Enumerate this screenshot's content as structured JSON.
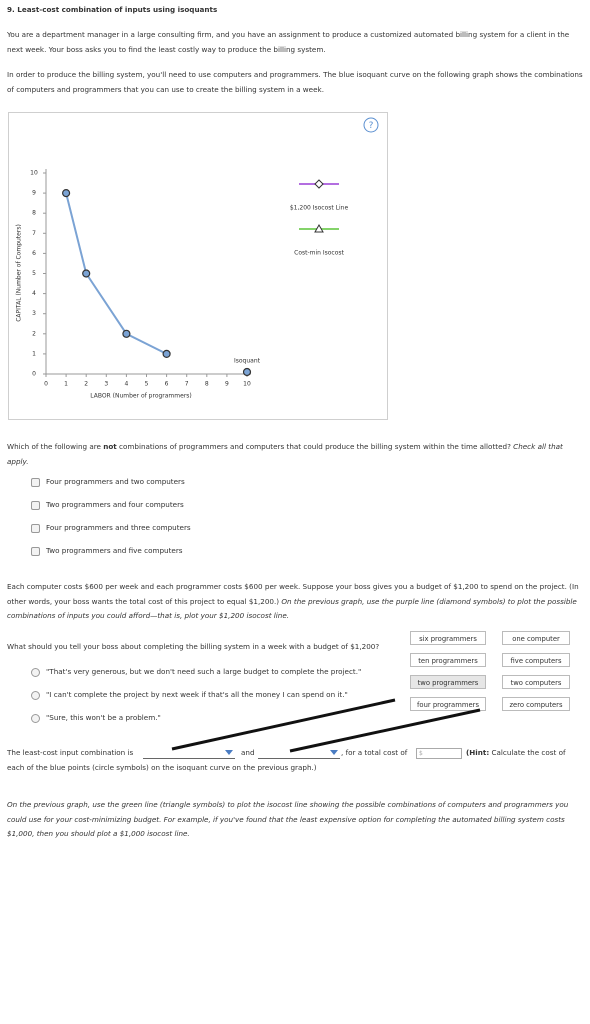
{
  "title": "9. Least-cost combination of inputs using isoquants",
  "intro": [
    "You are a department manager in a large consulting firm, and you have an assignment to produce a customized automated billing system for a client in the next week. Your boss asks you to find the least costly way to produce the billing system.",
    "In order to produce the billing system, you'll need to use computers and programmers. The blue isoquant curve on the following graph shows the combinations of computers and programmers that you can use to create the billing system in a week."
  ],
  "graph": {
    "type": "line",
    "help": "?",
    "x_label": "LABOR (Number of programmers)",
    "y_label": "CAPITAL (Number of Computers)",
    "xlim": [
      0,
      10
    ],
    "ylim": [
      0,
      10
    ],
    "xticks": [
      0,
      1,
      2,
      3,
      4,
      5,
      6,
      7,
      8,
      9,
      10
    ],
    "yticks": [
      0,
      1,
      2,
      3,
      4,
      5,
      6,
      7,
      8,
      9,
      10
    ],
    "series": [
      {
        "name": "Isoquant",
        "color": "#7ba3d4",
        "x": [
          1,
          2,
          4,
          6
        ],
        "y": [
          9,
          5,
          2,
          1
        ]
      }
    ],
    "legend": [
      {
        "name": "$1,200 Isocost Line",
        "color": "#b36ee0",
        "marker": "diamond"
      },
      {
        "name": "Cost-min Isocost",
        "color": "#84d36a",
        "marker": "triangle"
      }
    ]
  },
  "question1": {
    "text": [
      "Which of the following are ",
      "not",
      " combinations of programmers and computers that could produce the billing system within the time allotted?",
      " Check all that apply."
    ],
    "options": [
      "Four programmers and two computers",
      "Two programmers and four computers",
      "Four programmers and three computers",
      "Two programmers and five computers"
    ]
  },
  "budget": [
    "Each computer costs $600 per week and each programmer costs $600 per week. Suppose your boss gives you a budget of $1,200 to spend on the project. (In other words, your boss wants the total cost of this project to equal $1,200.)",
    " On the previous graph, use the purple line (diamond symbols) to plot the possible combinations of inputs you could afford—that is, plot your $1,200 isocost line."
  ],
  "question2": {
    "text": "What should you tell your boss about completing the billing system in a week with a budget of $1,200?",
    "options": [
      "\"That's very generous, but we don't need such a large budget to complete the project.\"",
      "\"I can't complete the project by next week if that's all the money I can spend on it.\"",
      "\"Sure, this won't be a problem.\""
    ]
  },
  "dropdown_programmers": [
    "six programmers",
    "ten programmers",
    "two programmers",
    "four programmers"
  ],
  "dropdown_computers": [
    "one computer",
    "five computers",
    "two computers",
    "zero computers"
  ],
  "sentence": {
    "start": "The least-cost input combination is",
    "and": "and",
    "cost": ", for a total cost of",
    "placeholder": "$",
    "hint_bold": "(Hint:",
    "hint_1": " Calculate the cost of",
    "hint_2": "each of the blue points (circle symbols) on the isoquant curve on the previous graph.)"
  },
  "final": "On the previous graph, use the green line (triangle symbols) to plot the isocost line showing the possible combinations of computers and programmers you could use for your cost-minimizing budget. For example, if you've found that the least expensive option for completing the automated billing system costs $1,000, then you should plot a $1,000 isocost line."
}
